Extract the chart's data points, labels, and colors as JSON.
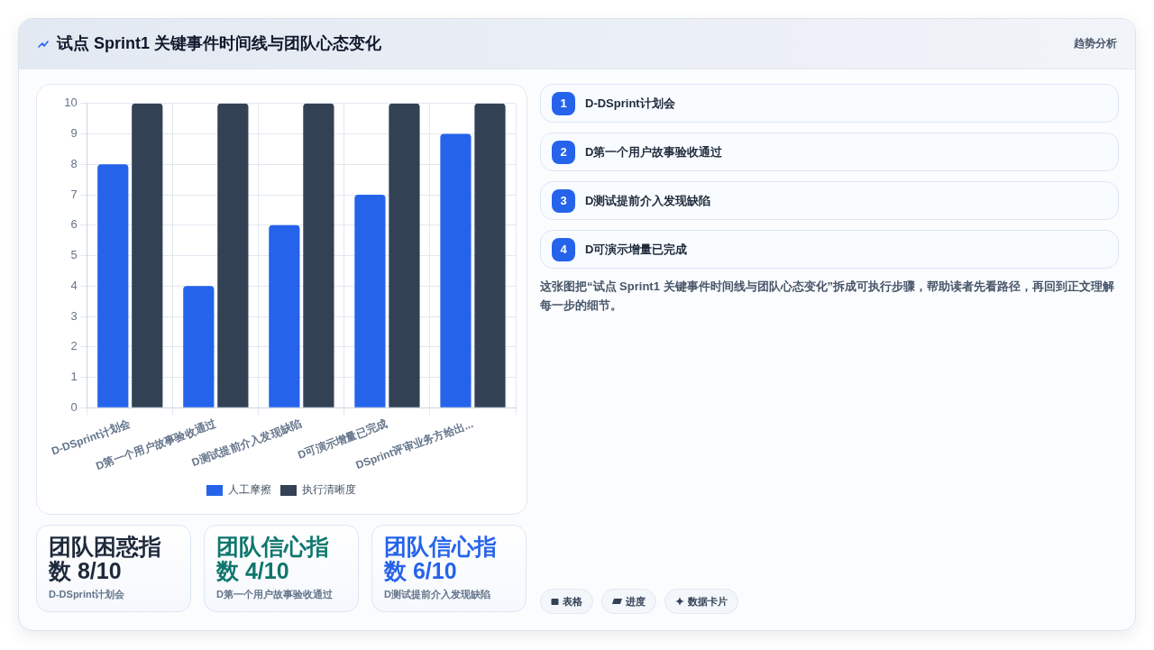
{
  "chart_data": [
    {
      "type": "other",
      "title": "试点 Sprint1 关键事件时间线与团队心态变化",
      "subtitle": "趋势分析"
    },
    {
      "type": "bar",
      "categories": [
        "D-DSprint计划会",
        "D第一个用户故事验收通过",
        "D测试提前介入发现缺陷",
        "D可演示增量已完成",
        "DSprint评审业务方给出..."
      ],
      "series": [
        {
          "name": "人工摩擦",
          "color": "#2563eb",
          "values": [
            8,
            4,
            6,
            7,
            9
          ]
        },
        {
          "name": "执行清晰度",
          "color": "#334155",
          "values": [
            10,
            10,
            10,
            10,
            10
          ]
        }
      ],
      "ylim": [
        0,
        10
      ],
      "yticks": [
        0,
        1,
        2,
        3,
        4,
        5,
        6,
        7,
        8,
        9,
        10
      ],
      "grid": true,
      "legend": "bottom"
    },
    {
      "type": "other",
      "title": "团队困惑指数 8/10",
      "subtitle": "D-DSprint计划会",
      "color": "#1e293b"
    },
    {
      "type": "other",
      "title": "团队信心指数 4/10",
      "subtitle": "D第一个用户故事验收通过",
      "color": "#0f766e"
    },
    {
      "type": "other",
      "title": "团队信心指数 6/10",
      "subtitle": "D测试提前介入发现缺陷",
      "color": "#2563eb"
    },
    {
      "type": "other",
      "categories": [
        "D-DSprint计划会",
        "D第一个用户故事验收通过",
        "D测试提前介入发现缺陷",
        "D可演示增量已完成"
      ],
      "values": [
        1,
        2,
        3,
        4
      ],
      "data_labels": true,
      "annotations": [
        "这张图把“试点 Sprint1 关键事件时间线与团队心态变化”拆成可执行步骤，帮助读者先看路径，再回到正文理解每一步的细节。"
      ]
    },
    {
      "type": "other",
      "annotations": [
        "表格",
        "进度",
        "数据卡片"
      ]
    }
  ]
}
